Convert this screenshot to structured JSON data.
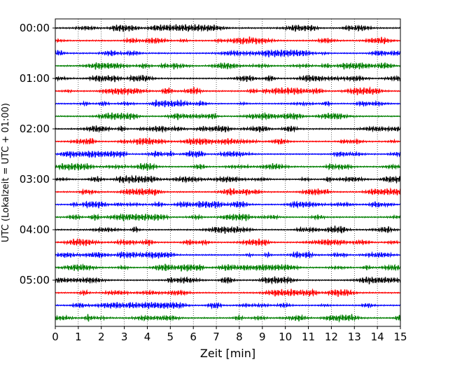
{
  "chart_data": {
    "type": "line",
    "title": "",
    "xlabel": "Zeit  [min]",
    "ylabel": "UTC (Lokalzeit = UTC + 01:00)",
    "xlim": [
      0,
      15
    ],
    "x_ticks": [
      0,
      1,
      2,
      3,
      4,
      5,
      6,
      7,
      8,
      9,
      10,
      11,
      12,
      13,
      14,
      15
    ],
    "x_tick_labels": [
      "0",
      "1",
      "2",
      "3",
      "4",
      "5",
      "6",
      "7",
      "8",
      "9",
      "10",
      "11",
      "12",
      "13",
      "14",
      "15"
    ],
    "y_tick_labels": [
      "00:00",
      "01:00",
      "02:00",
      "03:00",
      "04:00",
      "05:00"
    ],
    "y_tick_rows": [
      0,
      4,
      8,
      12,
      16,
      20
    ],
    "row_minutes": 15,
    "rows": 24,
    "row_colors": [
      "#000000",
      "#ff0000",
      "#0000ff",
      "#007f00"
    ],
    "grid": "vertical dotted at each minute",
    "legend": "none"
  }
}
